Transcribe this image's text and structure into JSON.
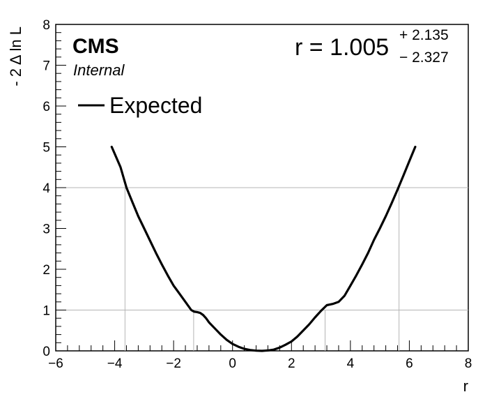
{
  "chart_data": {
    "type": "line",
    "xlabel": "r",
    "ylabel": "- 2 Δ ln L",
    "xlim": [
      -6,
      8
    ],
    "ylim": [
      0,
      8
    ],
    "x_ticks": [
      -6,
      -4,
      -2,
      0,
      2,
      4,
      6,
      8
    ],
    "x_tick_labels": [
      "−6",
      "−4",
      "−2",
      "0",
      "2",
      "4",
      "6",
      "8"
    ],
    "y_ticks": [
      0,
      1,
      2,
      3,
      4,
      5,
      6,
      7,
      8
    ],
    "y_tick_labels": [
      "0",
      "1",
      "2",
      "3",
      "4",
      "5",
      "6",
      "7",
      "8"
    ],
    "grid": false,
    "reference_levels": [
      1,
      4
    ],
    "interval_crossings": [
      -3.65,
      -1.32,
      3.14,
      5.65
    ],
    "series": [
      {
        "name": "Expected",
        "color": "#000000",
        "x": [
          -4.1,
          -3.8,
          -3.6,
          -3.4,
          -3.2,
          -3.0,
          -2.8,
          -2.6,
          -2.4,
          -2.2,
          -2.0,
          -1.8,
          -1.6,
          -1.4,
          -1.3,
          -1.2,
          -1.1,
          -1.0,
          -0.9,
          -0.8,
          -0.6,
          -0.4,
          -0.2,
          0.0,
          0.2,
          0.4,
          0.6,
          0.8,
          1.0,
          1.2,
          1.4,
          1.6,
          1.8,
          2.0,
          2.2,
          2.4,
          2.6,
          2.8,
          3.0,
          3.2,
          3.4,
          3.6,
          3.8,
          4.0,
          4.2,
          4.4,
          4.6,
          4.8,
          5.0,
          5.2,
          5.4,
          5.6,
          5.8,
          6.0,
          6.2
        ],
        "y": [
          5.0,
          4.5,
          4.0,
          3.65,
          3.3,
          3.0,
          2.7,
          2.4,
          2.12,
          1.85,
          1.6,
          1.4,
          1.2,
          1.0,
          0.96,
          0.95,
          0.93,
          0.88,
          0.8,
          0.7,
          0.55,
          0.4,
          0.27,
          0.17,
          0.1,
          0.05,
          0.02,
          0.005,
          0.0,
          0.01,
          0.03,
          0.08,
          0.15,
          0.23,
          0.35,
          0.5,
          0.65,
          0.82,
          0.98,
          1.12,
          1.15,
          1.2,
          1.35,
          1.6,
          1.85,
          2.12,
          2.4,
          2.72,
          3.0,
          3.3,
          3.62,
          3.95,
          4.3,
          4.65,
          5.0
        ]
      }
    ]
  },
  "labels": {
    "experiment": "CMS",
    "status": "Internal",
    "result_prefix": "r = 1.005",
    "err_up": "+ 2.135",
    "err_down": "− 2.327"
  }
}
